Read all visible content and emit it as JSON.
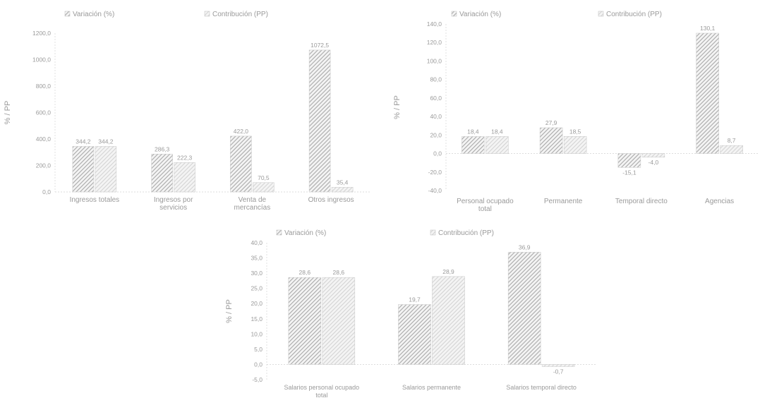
{
  "colors": {
    "variation": "#a9a9a9",
    "contribution": "#d4d4d4",
    "axis": "#dddddd",
    "text": "#9a9a9a"
  },
  "chart_data": [
    {
      "type": "bar",
      "legend": [
        "Variación (%)",
        "Contribución (PP)"
      ],
      "ylabel": "% / PP",
      "ylim": [
        0,
        1200
      ],
      "yticks": [
        0,
        200,
        400,
        600,
        800,
        1000,
        1200
      ],
      "ytick_labels": [
        "0,0",
        "200,0",
        "400,0",
        "600,0",
        "800,0",
        "1000,0",
        "1200,0"
      ],
      "categories": [
        "Ingresos totales",
        "Ingresos por servicios",
        "Venta de mercancías",
        "Otros ingresos"
      ],
      "series": [
        {
          "name": "Variación (%)",
          "values": [
            344.2,
            286.3,
            422.0,
            1072.5
          ],
          "labels": [
            "344,2",
            "286,3",
            "422,0",
            "1072,5"
          ]
        },
        {
          "name": "Contribución (PP)",
          "values": [
            344.2,
            222.3,
            70.5,
            35.4
          ],
          "labels": [
            "344,2",
            "222,3",
            "70,5",
            "35,4"
          ]
        }
      ]
    },
    {
      "type": "bar",
      "legend": [
        "Variación (%)",
        "Contribución (PP)"
      ],
      "ylabel": "% / PP",
      "ylim": [
        -40,
        140
      ],
      "yticks": [
        -40,
        -20,
        0,
        20,
        40,
        60,
        80,
        100,
        120,
        140
      ],
      "ytick_labels": [
        "-40,0",
        "-20,0",
        "0,0",
        "20,0",
        "40,0",
        "60,0",
        "80,0",
        "100,0",
        "120,0",
        "140,0"
      ],
      "categories": [
        "Personal ocupado total",
        "Permanente",
        "Temporal directo",
        "Agencias"
      ],
      "series": [
        {
          "name": "Variación (%)",
          "values": [
            18.4,
            27.9,
            -15.1,
            130.1
          ],
          "labels": [
            "18,4",
            "27,9",
            "-15,1",
            "130,1"
          ]
        },
        {
          "name": "Contribución (PP)",
          "values": [
            18.4,
            18.5,
            -4.0,
            8.7
          ],
          "labels": [
            "18,4",
            "18,5",
            "-4,0",
            "8,7"
          ]
        }
      ]
    },
    {
      "type": "bar",
      "legend": [
        "Variación (%)",
        "Contribución (PP)"
      ],
      "ylabel": "% / PP",
      "ylim": [
        -5,
        40
      ],
      "yticks": [
        -5,
        0,
        5,
        10,
        15,
        20,
        25,
        30,
        35,
        40
      ],
      "ytick_labels": [
        "-5,0",
        "0,0",
        "5,0",
        "10,0",
        "15,0",
        "20,0",
        "25,0",
        "30,0",
        "35,0",
        "40,0"
      ],
      "categories": [
        "Salarios personal ocupado total",
        "Salarios permanente",
        "Salarios temporal directo"
      ],
      "series": [
        {
          "name": "Variación (%)",
          "values": [
            28.6,
            19.7,
            36.9
          ],
          "labels": [
            "28,6",
            "19,7",
            "36,9"
          ]
        },
        {
          "name": "Contribución (PP)",
          "values": [
            28.6,
            28.9,
            -0.7
          ],
          "labels": [
            "28,6",
            "28,9",
            "-0,7"
          ]
        }
      ]
    }
  ]
}
